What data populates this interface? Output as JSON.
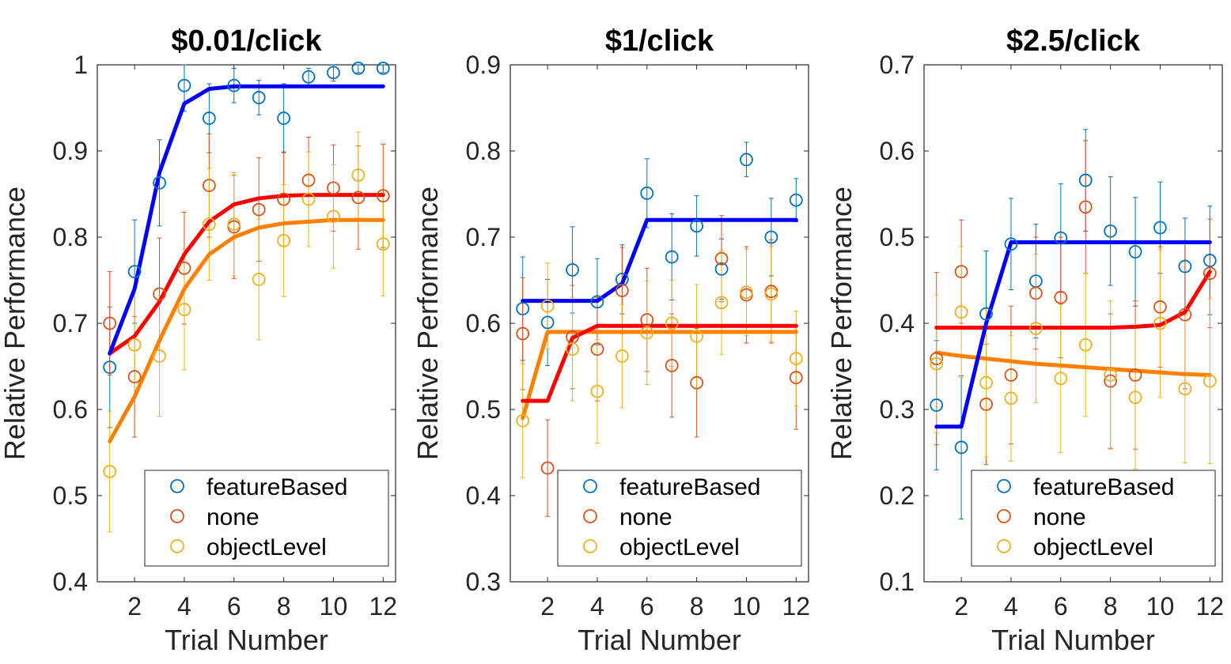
{
  "chart_data": [
    {
      "type": "scatter",
      "title": "$0.01/click",
      "xlabel": "Trial Number",
      "ylabel": "Relative Performance",
      "xlim": [
        0.5,
        12.5
      ],
      "ylim": [
        0.4,
        1.0
      ],
      "xticks": [
        "2",
        "4",
        "6",
        "8",
        "10",
        "12"
      ],
      "yticks": [
        "0.4",
        "0.5",
        "0.6",
        "0.7",
        "0.8",
        "0.9",
        "1"
      ],
      "grid": false,
      "legend": "bottom-right",
      "series": [
        {
          "name": "featureBased",
          "color": "#0072BD",
          "fit_color": "#0000FF",
          "points": [
            0.649,
            0.76,
            0.863,
            0.976,
            0.938,
            0.976,
            0.962,
            0.938,
            0.986,
            0.991,
            0.996,
            0.996
          ],
          "err": [
            0.07,
            0.06,
            0.05,
            0.03,
            0.04,
            0.02,
            0.02,
            0.04,
            0.01,
            0.01,
            0.005,
            0.005
          ],
          "fit": [
            0.665,
            0.74,
            0.875,
            0.955,
            0.972,
            0.975,
            0.975,
            0.975,
            0.975,
            0.975,
            0.975,
            0.975
          ]
        },
        {
          "name": "none",
          "color": "#D95319",
          "fit_color": "#FF0000",
          "points": [
            0.7,
            0.638,
            0.734,
            0.764,
            0.86,
            0.812,
            0.832,
            0.844,
            0.866,
            0.857,
            0.846,
            0.848
          ],
          "err": [
            0.06,
            0.07,
            0.065,
            0.065,
            0.06,
            0.06,
            0.06,
            0.055,
            0.05,
            0.05,
            0.06,
            0.06
          ],
          "fit": [
            0.665,
            0.685,
            0.725,
            0.78,
            0.818,
            0.838,
            0.845,
            0.848,
            0.849,
            0.849,
            0.849,
            0.849
          ]
        },
        {
          "name": "objectLevel",
          "color": "#EDB120",
          "fit_color": "#FF8000",
          "points": [
            0.528,
            0.675,
            0.662,
            0.716,
            0.815,
            0.815,
            0.751,
            0.796,
            0.844,
            0.824,
            0.872,
            0.792
          ],
          "err": [
            0.07,
            0.06,
            0.07,
            0.07,
            0.065,
            0.06,
            0.07,
            0.065,
            0.055,
            0.06,
            0.05,
            0.06
          ],
          "fit": [
            0.563,
            0.615,
            0.68,
            0.74,
            0.78,
            0.8,
            0.811,
            0.816,
            0.818,
            0.82,
            0.82,
            0.82
          ]
        }
      ]
    },
    {
      "type": "scatter",
      "title": "$1/click",
      "xlabel": "Trial Number",
      "ylabel": "Relative Performance",
      "xlim": [
        0.5,
        12.5
      ],
      "ylim": [
        0.3,
        0.9
      ],
      "xticks": [
        "2",
        "4",
        "6",
        "8",
        "10",
        "12"
      ],
      "yticks": [
        "0.3",
        "0.4",
        "0.5",
        "0.6",
        "0.7",
        "0.8",
        "0.9"
      ],
      "grid": false,
      "legend": "bottom-right",
      "series": [
        {
          "name": "featureBased",
          "color": "#0072BD",
          "fit_color": "#0000FF",
          "points": [
            0.617,
            0.601,
            0.662,
            0.625,
            0.651,
            0.751,
            0.677,
            0.713,
            0.663,
            0.79,
            0.7,
            0.743
          ],
          "err": [
            0.06,
            0.05,
            0.05,
            0.05,
            0.04,
            0.04,
            0.05,
            0.035,
            0.035,
            0.02,
            0.045,
            0.025
          ],
          "fit": [
            0.626,
            0.626,
            0.626,
            0.626,
            0.646,
            0.72,
            0.72,
            0.72,
            0.72,
            0.72,
            0.72,
            0.72
          ]
        },
        {
          "name": "none",
          "color": "#D95319",
          "fit_color": "#FF0000",
          "points": [
            0.588,
            0.432,
            0.584,
            0.57,
            0.638,
            0.604,
            0.551,
            0.531,
            0.675,
            0.633,
            0.637,
            0.537
          ],
          "err": [
            0.065,
            0.056,
            0.06,
            0.06,
            0.05,
            0.06,
            0.06,
            0.063,
            0.05,
            0.056,
            0.06,
            0.06
          ],
          "fit": [
            0.51,
            0.51,
            0.583,
            0.597,
            0.597,
            0.597,
            0.597,
            0.597,
            0.597,
            0.597,
            0.597,
            0.597
          ]
        },
        {
          "name": "objectLevel",
          "color": "#EDB120",
          "fit_color": "#FF8000",
          "points": [
            0.487,
            0.62,
            0.57,
            0.521,
            0.562,
            0.589,
            0.6,
            0.585,
            0.624,
            0.636,
            0.634,
            0.559
          ],
          "err": [
            0.066,
            0.05,
            0.06,
            0.06,
            0.06,
            0.06,
            0.05,
            0.06,
            0.06,
            0.05,
            0.055,
            0.055
          ],
          "fit": [
            0.49,
            0.59,
            0.59,
            0.59,
            0.59,
            0.59,
            0.59,
            0.59,
            0.59,
            0.59,
            0.59,
            0.59
          ]
        }
      ]
    },
    {
      "type": "scatter",
      "title": "$2.5/click",
      "xlabel": "Trial Number",
      "ylabel": "Relative Performance",
      "xlim": [
        0.5,
        12.5
      ],
      "ylim": [
        0.1,
        0.7
      ],
      "xticks": [
        "2",
        "4",
        "6",
        "8",
        "10",
        "12"
      ],
      "yticks": [
        "0.1",
        "0.2",
        "0.3",
        "0.4",
        "0.5",
        "0.6",
        "0.7"
      ],
      "grid": false,
      "legend": "bottom-right",
      "series": [
        {
          "name": "featureBased",
          "color": "#0072BD",
          "fit_color": "#0000FF",
          "points": [
            0.305,
            0.256,
            0.411,
            0.492,
            0.449,
            0.499,
            0.566,
            0.507,
            0.483,
            0.511,
            0.466,
            0.473
          ],
          "err": [
            0.075,
            0.083,
            0.073,
            0.053,
            0.066,
            0.063,
            0.059,
            0.063,
            0.063,
            0.053,
            0.056,
            0.063
          ],
          "fit": [
            0.28,
            0.28,
            0.4,
            0.494,
            0.494,
            0.494,
            0.494,
            0.494,
            0.494,
            0.494,
            0.494,
            0.494
          ]
        },
        {
          "name": "none",
          "color": "#D95319",
          "fit_color": "#FF0000",
          "points": [
            0.359,
            0.46,
            0.306,
            0.34,
            0.435,
            0.43,
            0.535,
            0.333,
            0.34,
            0.419,
            0.41,
            0.458
          ],
          "err": [
            0.1,
            0.06,
            0.07,
            0.08,
            0.065,
            0.07,
            0.077,
            0.078,
            0.086,
            0.07,
            0.086,
            0.063
          ],
          "fit": [
            0.395,
            0.395,
            0.395,
            0.395,
            0.395,
            0.395,
            0.395,
            0.395,
            0.396,
            0.398,
            0.413,
            0.46
          ]
        },
        {
          "name": "objectLevel",
          "color": "#EDB120",
          "fit_color": "#FF8000",
          "points": [
            0.353,
            0.413,
            0.331,
            0.313,
            0.394,
            0.336,
            0.375,
            0.34,
            0.314,
            0.4,
            0.324,
            0.333
          ],
          "err": [
            0.08,
            0.076,
            0.086,
            0.073,
            0.086,
            0.086,
            0.083,
            0.086,
            0.083,
            0.086,
            0.086,
            0.096
          ],
          "fit": [
            0.366,
            0.362,
            0.359,
            0.356,
            0.353,
            0.351,
            0.349,
            0.347,
            0.345,
            0.343,
            0.341,
            0.34
          ]
        }
      ]
    }
  ]
}
